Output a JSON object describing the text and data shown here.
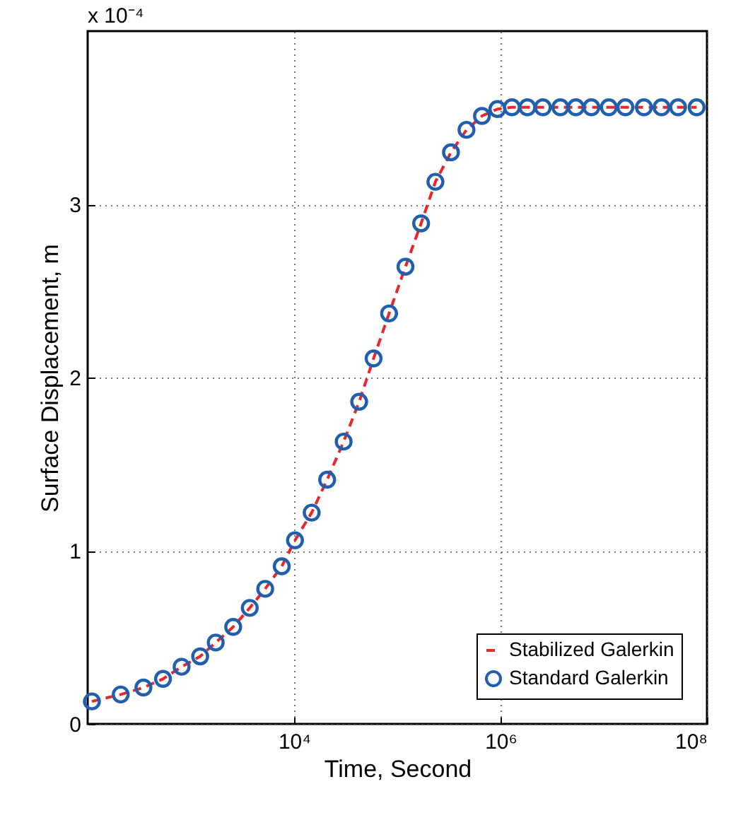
{
  "chart_data": {
    "type": "line",
    "xlabel": "Time, Second",
    "ylabel": "Surface Displacement, m",
    "annotations": [
      "x 10⁻⁴"
    ],
    "log": "x",
    "xlim": [
      100,
      100000000
    ],
    "xticks": [
      {
        "value": 10000,
        "label": "10⁴"
      },
      {
        "value": 1000000,
        "label": "10⁶"
      },
      {
        "value": 100000000,
        "label": "10⁸"
      }
    ],
    "ylim": [
      0,
      4
    ],
    "yticks": [
      0,
      1,
      2,
      3
    ],
    "grid": true,
    "legend": "bottom right",
    "x": [
      110,
      209,
      347,
      537,
      813,
      1230,
      1740,
      2570,
      3720,
      5250,
      7590,
      10200,
      14800,
      20900,
      30200,
      42700,
      58900,
      83200,
      120000,
      170000,
      234000,
      331000,
      468000,
      661000,
      933000,
      1290000,
      1820000,
      2570000,
      3800000,
      5370000,
      7590000,
      11200000,
      16200000,
      24500000,
      36300000,
      52500000,
      79400000
    ],
    "series": [
      {
        "name": "Stabilized Galerkin",
        "line_style": "dashed",
        "marker": "none",
        "color": "#e8262b",
        "values": [
          0.13,
          0.17,
          0.21,
          0.26,
          0.33,
          0.39,
          0.47,
          0.56,
          0.67,
          0.78,
          0.91,
          1.06,
          1.22,
          1.41,
          1.63,
          1.86,
          2.11,
          2.37,
          2.64,
          2.89,
          3.13,
          3.3,
          3.43,
          3.51,
          3.55,
          3.56,
          3.56,
          3.56,
          3.56,
          3.56,
          3.56,
          3.56,
          3.56,
          3.56,
          3.56,
          3.56,
          3.56
        ]
      },
      {
        "name": "Standard Galerkin",
        "type": "scatter",
        "marker": "circle",
        "color": "#1f5fae",
        "values": [
          0.13,
          0.17,
          0.21,
          0.26,
          0.33,
          0.39,
          0.47,
          0.56,
          0.67,
          0.78,
          0.91,
          1.06,
          1.22,
          1.41,
          1.63,
          1.86,
          2.11,
          2.37,
          2.64,
          2.89,
          3.13,
          3.3,
          3.43,
          3.51,
          3.55,
          3.56,
          3.56,
          3.56,
          3.56,
          3.56,
          3.56,
          3.56,
          3.56,
          3.56,
          3.56,
          3.56,
          3.56
        ]
      }
    ]
  }
}
